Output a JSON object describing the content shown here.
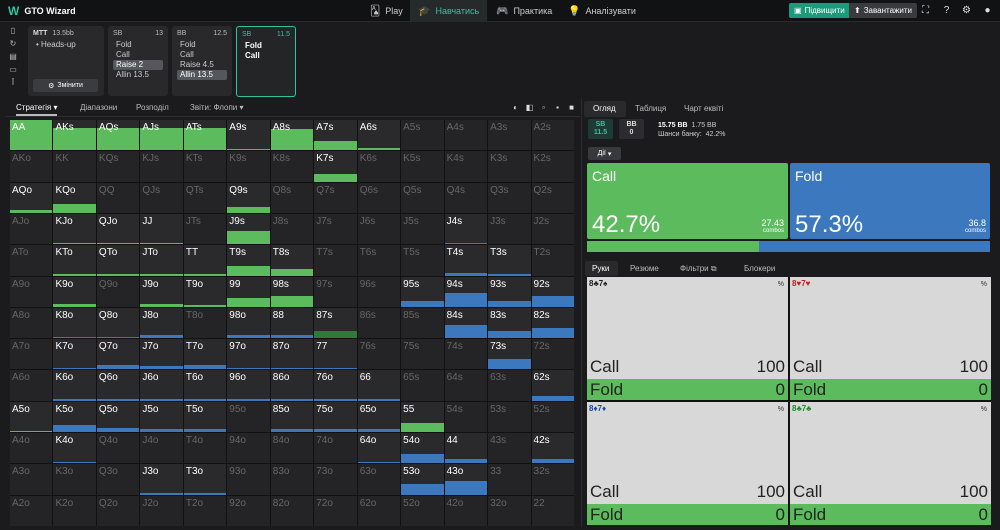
{
  "app": {
    "title": "GTO Wizard"
  },
  "nav": [
    {
      "label": "Play",
      "icon": "cards-icon"
    },
    {
      "label": "Навчатись",
      "icon": "graduation-icon"
    },
    {
      "label": "Практика",
      "icon": "gamepad-icon"
    },
    {
      "label": "Аналізувати",
      "icon": "bulb-icon"
    }
  ],
  "top_buttons": {
    "upgrade": "Підвищити",
    "upload": "Завантажити"
  },
  "game": {
    "title": "MTT",
    "stack": "13.5bb",
    "mode": "Heads-up",
    "change_label": "Змінити"
  },
  "spots": [
    {
      "pos": "SB",
      "stack": "13",
      "actions": [
        "Fold",
        "Call",
        "Raise 2",
        "Allin 13.5"
      ],
      "selected": 2
    },
    {
      "pos": "BB",
      "stack": "12.5",
      "actions": [
        "Fold",
        "Call",
        "Raise 4.5",
        "Allin 13.5"
      ],
      "selected": 3
    },
    {
      "pos": "SB",
      "stack": "11.5",
      "actions": [
        "Fold",
        "Call"
      ],
      "selected": -1
    }
  ],
  "subtabs": [
    "Стратегія",
    "Діапазони",
    "Розподіл",
    "Звіти: Флопи"
  ],
  "right_tabs": [
    "Огляд",
    "Таблиця",
    "Чарт еквіті"
  ],
  "summary": {
    "sb_label": "SB",
    "sb_val": "11.5",
    "bb_label": "BB",
    "bb_val": "0",
    "pot": "15.75 BB",
    "pot_sub": "1.75 BB",
    "equity_label": "Шанси банку:",
    "equity_val": "42.2%"
  },
  "actions_label": "Дії",
  "big": {
    "call": {
      "name": "Call",
      "pct": "42.7%",
      "combos": "27.43",
      "combos_label": "combos"
    },
    "fold": {
      "name": "Fold",
      "pct": "57.3%",
      "combos": "36.8",
      "combos_label": "combos"
    },
    "ratio": 0.427
  },
  "hand_tabs": [
    "Руки",
    "Резюме",
    "Фільтри",
    "Блокери"
  ],
  "hands": [
    {
      "cards": "8♣7♠",
      "color": "black",
      "call": "100",
      "fold": "0",
      "call_label": "Call",
      "fold_label": "Fold"
    },
    {
      "cards": "8♥7♥",
      "color": "red",
      "call": "100",
      "fold": "0",
      "call_label": "Call",
      "fold_label": "Fold"
    },
    {
      "cards": "8♦7♦",
      "color": "blue",
      "call": "100",
      "fold": "0",
      "call_label": "Call",
      "fold_label": "Fold"
    },
    {
      "cards": "8♣7♣",
      "color": "green",
      "call": "100",
      "fold": "0",
      "call_label": "Call",
      "fold_label": "Fold"
    }
  ],
  "matrix": [
    [
      [
        "AA",
        1,
        "g",
        1
      ],
      [
        "AKs",
        1,
        "g",
        0.75
      ],
      [
        "AQs",
        1,
        "g",
        0.75
      ],
      [
        "AJs",
        1,
        "g",
        0.75
      ],
      [
        "ATs",
        1,
        "g",
        0.75
      ],
      [
        "A9s",
        1,
        "g",
        0.05
      ],
      [
        "A8s",
        1,
        "g",
        0.7
      ],
      [
        "A7s",
        1,
        "g",
        0.3
      ],
      [
        "A6s",
        1,
        "g",
        0.08
      ],
      [
        "A5s",
        0,
        "",
        0
      ],
      [
        "A4s",
        0,
        "",
        0
      ],
      [
        "A3s",
        0,
        "",
        0
      ],
      [
        "A2s",
        0,
        "",
        0
      ]
    ],
    [
      [
        "AKo",
        0,
        "",
        0
      ],
      [
        "KK",
        0,
        "",
        0
      ],
      [
        "KQs",
        0,
        "",
        0
      ],
      [
        "KJs",
        0,
        "",
        0
      ],
      [
        "KTs",
        0,
        "",
        0
      ],
      [
        "K9s",
        0,
        "",
        0
      ],
      [
        "K8s",
        0,
        "",
        0
      ],
      [
        "K7s",
        1,
        "g",
        0.25
      ],
      [
        "K6s",
        0,
        "",
        0
      ],
      [
        "K5s",
        0,
        "",
        0
      ],
      [
        "K4s",
        0,
        "",
        0
      ],
      [
        "K3s",
        0,
        "",
        0
      ],
      [
        "K2s",
        0,
        "",
        0
      ]
    ],
    [
      [
        "AQo",
        1,
        "g",
        0.1
      ],
      [
        "KQo",
        1,
        "g",
        0.3
      ],
      [
        "QQ",
        0,
        "",
        0
      ],
      [
        "QJs",
        0,
        "",
        0
      ],
      [
        "QTs",
        0,
        "",
        0
      ],
      [
        "Q9s",
        1,
        "g",
        0.2
      ],
      [
        "Q8s",
        0,
        "",
        0
      ],
      [
        "Q7s",
        0,
        "",
        0
      ],
      [
        "Q6s",
        0,
        "",
        0
      ],
      [
        "Q5s",
        0,
        "",
        0
      ],
      [
        "Q4s",
        0,
        "",
        0
      ],
      [
        "Q3s",
        0,
        "",
        0
      ],
      [
        "Q2s",
        0,
        "",
        0
      ]
    ],
    [
      [
        "AJo",
        0,
        "",
        0
      ],
      [
        "KJo",
        1,
        "g",
        0.05
      ],
      [
        "QJo",
        1,
        "g",
        0.05
      ],
      [
        "JJ",
        1,
        "g",
        0.05
      ],
      [
        "JTs",
        0,
        "",
        0
      ],
      [
        "J9s",
        1,
        "g",
        0.45
      ],
      [
        "J8s",
        0,
        "",
        0
      ],
      [
        "J7s",
        0,
        "",
        0
      ],
      [
        "J6s",
        0,
        "",
        0
      ],
      [
        "J5s",
        0,
        "",
        0
      ],
      [
        "J4s",
        1,
        "b",
        0.05
      ],
      [
        "J3s",
        0,
        "",
        0
      ],
      [
        "J2s",
        0,
        "",
        0
      ]
    ],
    [
      [
        "ATo",
        0,
        "",
        0
      ],
      [
        "KTo",
        1,
        "g",
        0.05
      ],
      [
        "QTo",
        1,
        "g",
        0.05
      ],
      [
        "JTo",
        1,
        "g",
        0.05
      ],
      [
        "TT",
        1,
        "g",
        0.05
      ],
      [
        "T9s",
        1,
        "g",
        0.3
      ],
      [
        "T8s",
        1,
        "g",
        0.2
      ],
      [
        "T7s",
        0,
        "",
        0
      ],
      [
        "T6s",
        0,
        "",
        0
      ],
      [
        "T5s",
        0,
        "",
        0
      ],
      [
        "T4s",
        1,
        "b",
        0.1
      ],
      [
        "T3s",
        1,
        "b",
        0.05
      ],
      [
        "T2s",
        0,
        "",
        0
      ]
    ],
    [
      [
        "A9o",
        0,
        "",
        0
      ],
      [
        "K9o",
        1,
        "g",
        0.1
      ],
      [
        "Q9o",
        0,
        "",
        0
      ],
      [
        "J9o",
        1,
        "g",
        0.1
      ],
      [
        "T9o",
        1,
        "g",
        0.05
      ],
      [
        "99",
        1,
        "g",
        0.3
      ],
      [
        "98s",
        1,
        "g",
        0.35
      ],
      [
        "97s",
        0,
        "",
        0
      ],
      [
        "96s",
        0,
        "",
        0
      ],
      [
        "95s",
        1,
        "b",
        0.2
      ],
      [
        "94s",
        1,
        "b",
        0.45
      ],
      [
        "93s",
        1,
        "b",
        0.2
      ],
      [
        "92s",
        1,
        "b",
        0.35
      ]
    ],
    [
      [
        "A8o",
        0,
        "",
        0
      ],
      [
        "K8o",
        1,
        "b",
        0.05
      ],
      [
        "Q8o",
        1,
        "b",
        0.05
      ],
      [
        "J8o",
        1,
        "b",
        0.1
      ],
      [
        "T8o",
        0,
        "",
        0
      ],
      [
        "98o",
        1,
        "b",
        0.1
      ],
      [
        "88",
        1,
        "b",
        0.1
      ],
      [
        "87s",
        1,
        "dg",
        0.25
      ],
      [
        "86s",
        0,
        "",
        0
      ],
      [
        "85s",
        0,
        "",
        0
      ],
      [
        "84s",
        1,
        "b",
        0.45
      ],
      [
        "83s",
        1,
        "b",
        0.25
      ],
      [
        "82s",
        1,
        "b",
        0.35
      ]
    ],
    [
      [
        "A7o",
        0,
        "",
        0
      ],
      [
        "K7o",
        1,
        "b",
        0.05
      ],
      [
        "Q7o",
        1,
        "b",
        0.15
      ],
      [
        "J7o",
        1,
        "b",
        0.1
      ],
      [
        "T7o",
        1,
        "b",
        0.15
      ],
      [
        "97o",
        1,
        "b",
        0.05
      ],
      [
        "87o",
        1,
        "b",
        0.05
      ],
      [
        "77",
        1,
        "b",
        0.05
      ],
      [
        "76s",
        0,
        "",
        0
      ],
      [
        "75s",
        0,
        "",
        0
      ],
      [
        "74s",
        0,
        "",
        0
      ],
      [
        "73s",
        1,
        "b",
        0.35
      ],
      [
        "72s",
        0,
        "",
        0
      ]
    ],
    [
      [
        "A6o",
        0,
        "",
        0
      ],
      [
        "K6o",
        1,
        "b",
        0.05
      ],
      [
        "Q6o",
        1,
        "b",
        0.05
      ],
      [
        "J6o",
        1,
        "b",
        0.05
      ],
      [
        "T6o",
        1,
        "b",
        0.05
      ],
      [
        "96o",
        1,
        "b",
        0.05
      ],
      [
        "86o",
        1,
        "b",
        0.05
      ],
      [
        "76o",
        1,
        "b",
        0.05
      ],
      [
        "66",
        1,
        "b",
        0.05
      ],
      [
        "65s",
        0,
        "",
        0
      ],
      [
        "64s",
        0,
        "",
        0
      ],
      [
        "63s",
        0,
        "",
        0
      ],
      [
        "62s",
        1,
        "b",
        0.15
      ]
    ],
    [
      [
        "A5o",
        1,
        "g",
        0.05
      ],
      [
        "K5o",
        1,
        "b",
        0.25
      ],
      [
        "Q5o",
        1,
        "b",
        0.15
      ],
      [
        "J5o",
        1,
        "b",
        0.1
      ],
      [
        "T5o",
        1,
        "b",
        0.1
      ],
      [
        "95o",
        0,
        "",
        0
      ],
      [
        "85o",
        1,
        "b",
        0.1
      ],
      [
        "75o",
        1,
        "b",
        0.1
      ],
      [
        "65o",
        1,
        "b",
        0.1
      ],
      [
        "55",
        1,
        "g",
        0.3
      ],
      [
        "54s",
        0,
        "",
        0
      ],
      [
        "53s",
        0,
        "",
        0
      ],
      [
        "52s",
        0,
        "",
        0
      ]
    ],
    [
      [
        "A4o",
        0,
        "",
        0
      ],
      [
        "K4o",
        1,
        "b",
        0.05
      ],
      [
        "Q4o",
        0,
        "",
        0
      ],
      [
        "J4o",
        0,
        "",
        0
      ],
      [
        "T4o",
        0,
        "",
        0
      ],
      [
        "94o",
        0,
        "",
        0
      ],
      [
        "84o",
        0,
        "",
        0
      ],
      [
        "74o",
        0,
        "",
        0
      ],
      [
        "64o",
        1,
        "b",
        0.05
      ],
      [
        "54o",
        1,
        "b",
        0.3
      ],
      [
        "44",
        1,
        "b",
        0.15
      ],
      [
        "43s",
        0,
        "",
        0
      ],
      [
        "42s",
        1,
        "b",
        0.15
      ]
    ],
    [
      [
        "A3o",
        0,
        "",
        0
      ],
      [
        "K3o",
        0,
        "",
        0
      ],
      [
        "Q3o",
        0,
        "",
        0
      ],
      [
        "J3o",
        1,
        "b",
        0.05
      ],
      [
        "T3o",
        1,
        "b",
        0.05
      ],
      [
        "93o",
        0,
        "",
        0
      ],
      [
        "83o",
        0,
        "",
        0
      ],
      [
        "73o",
        0,
        "",
        0
      ],
      [
        "63o",
        0,
        "",
        0
      ],
      [
        "53o",
        1,
        "b",
        0.35
      ],
      [
        "43o",
        1,
        "b",
        0.45
      ],
      [
        "33",
        0,
        "",
        0
      ],
      [
        "32s",
        0,
        "",
        0
      ]
    ],
    [
      [
        "A2o",
        0,
        "",
        0
      ],
      [
        "K2o",
        0,
        "",
        0
      ],
      [
        "Q2o",
        0,
        "",
        0
      ],
      [
        "J2o",
        0,
        "",
        0
      ],
      [
        "T2o",
        0,
        "",
        0
      ],
      [
        "92o",
        0,
        "",
        0
      ],
      [
        "82o",
        0,
        "",
        0
      ],
      [
        "72o",
        0,
        "",
        0
      ],
      [
        "62o",
        0,
        "",
        0
      ],
      [
        "52o",
        0,
        "",
        0
      ],
      [
        "42o",
        0,
        "",
        0
      ],
      [
        "32o",
        0,
        "",
        0
      ],
      [
        "22",
        0,
        "",
        0
      ]
    ]
  ]
}
